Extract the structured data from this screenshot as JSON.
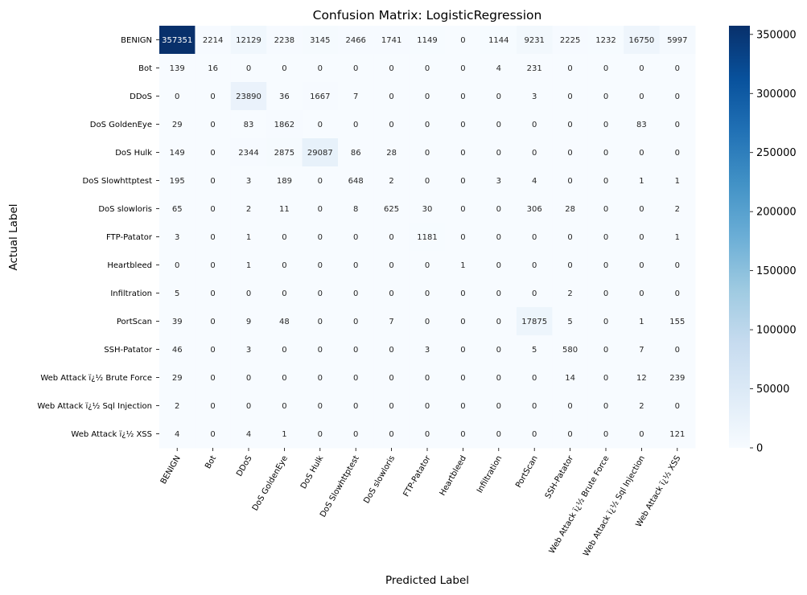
{
  "chart_data": {
    "type": "heatmap",
    "title": "Confusion Matrix: LogisticRegression",
    "xlabel": "Predicted Label",
    "ylabel": "Actual Label",
    "row_labels": [
      "BENIGN",
      "Bot",
      "DDoS",
      "DoS GoldenEye",
      "DoS Hulk",
      "DoS Slowhttptest",
      "DoS slowloris",
      "FTP-Patator",
      "Heartbleed",
      "Infiltration",
      "PortScan",
      "SSH-Patator",
      "Web Attack ï¿½ Brute Force",
      "Web Attack ï¿½ Sql Injection",
      "Web Attack ï¿½ XSS"
    ],
    "col_labels": [
      "BENIGN",
      "Bot",
      "DDoS",
      "DoS GoldenEye",
      "DoS Hulk",
      "DoS Slowhttptest",
      "DoS slowloris",
      "FTP-Patator",
      "Heartbleed",
      "Infiltration",
      "PortScan",
      "SSH-Patator",
      "Web Attack ï¿½ Brute Force",
      "Web Attack ï¿½ Sql Injection",
      "Web Attack ï¿½ XSS"
    ],
    "matrix": [
      [
        357351,
        2214,
        12129,
        2238,
        3145,
        2466,
        1741,
        1149,
        0,
        1144,
        9231,
        2225,
        1232,
        16750,
        5997
      ],
      [
        139,
        16,
        0,
        0,
        0,
        0,
        0,
        0,
        0,
        4,
        231,
        0,
        0,
        0,
        0
      ],
      [
        0,
        0,
        23890,
        36,
        1667,
        7,
        0,
        0,
        0,
        0,
        3,
        0,
        0,
        0,
        0
      ],
      [
        29,
        0,
        83,
        1862,
        0,
        0,
        0,
        0,
        0,
        0,
        0,
        0,
        0,
        83,
        0
      ],
      [
        149,
        0,
        2344,
        2875,
        29087,
        86,
        28,
        0,
        0,
        0,
        0,
        0,
        0,
        0,
        0
      ],
      [
        195,
        0,
        3,
        189,
        0,
        648,
        2,
        0,
        0,
        3,
        4,
        0,
        0,
        1,
        1
      ],
      [
        65,
        0,
        2,
        11,
        0,
        8,
        625,
        30,
        0,
        0,
        306,
        28,
        0,
        0,
        2
      ],
      [
        3,
        0,
        1,
        0,
        0,
        0,
        0,
        1181,
        0,
        0,
        0,
        0,
        0,
        0,
        1
      ],
      [
        0,
        0,
        1,
        0,
        0,
        0,
        0,
        0,
        1,
        0,
        0,
        0,
        0,
        0,
        0
      ],
      [
        5,
        0,
        0,
        0,
        0,
        0,
        0,
        0,
        0,
        0,
        0,
        2,
        0,
        0,
        0
      ],
      [
        39,
        0,
        9,
        48,
        0,
        0,
        7,
        0,
        0,
        0,
        17875,
        5,
        0,
        1,
        155
      ],
      [
        46,
        0,
        3,
        0,
        0,
        0,
        0,
        3,
        0,
        0,
        5,
        580,
        0,
        7,
        0
      ],
      [
        29,
        0,
        0,
        0,
        0,
        0,
        0,
        0,
        0,
        0,
        0,
        14,
        0,
        12,
        239
      ],
      [
        2,
        0,
        0,
        0,
        0,
        0,
        0,
        0,
        0,
        0,
        0,
        0,
        0,
        2,
        0
      ],
      [
        4,
        0,
        4,
        1,
        0,
        0,
        0,
        0,
        0,
        0,
        0,
        0,
        0,
        0,
        121
      ]
    ],
    "colorbar": {
      "colormap": "Blues",
      "vmin": 0,
      "vmax": 357351,
      "ticks": [
        0,
        50000,
        100000,
        150000,
        200000,
        250000,
        300000,
        350000
      ]
    }
  }
}
